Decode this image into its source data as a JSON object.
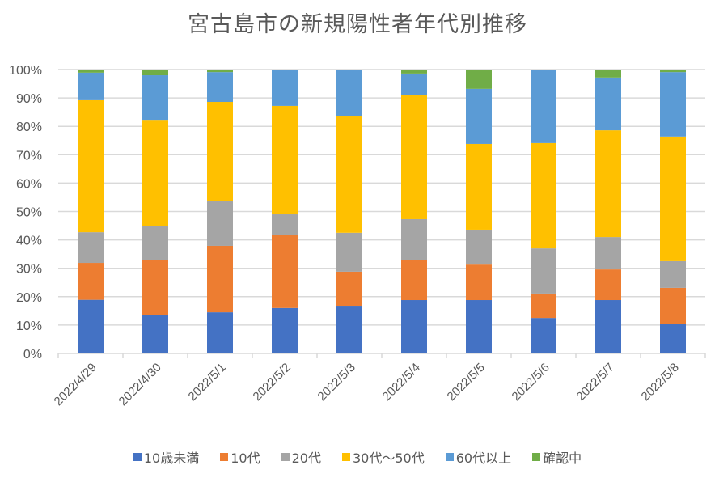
{
  "chart_data": {
    "type": "bar",
    "stacked": true,
    "normalized": "percent",
    "title": "宮古島市の新規陽性者年代別推移",
    "xlabel": "",
    "ylabel": "",
    "ylim": [
      0,
      100
    ],
    "yticks": [
      "0%",
      "10%",
      "20%",
      "30%",
      "40%",
      "50%",
      "60%",
      "70%",
      "80%",
      "90%",
      "100%"
    ],
    "grid": true,
    "legend_position": "bottom",
    "categories": [
      "2022/4/29",
      "2022/4/30",
      "2022/5/1",
      "2022/5/2",
      "2022/5/3",
      "2022/5/4",
      "2022/5/5",
      "2022/5/6",
      "2022/5/7",
      "2022/5/8"
    ],
    "series": [
      {
        "name": "10歳未満",
        "color": "#4472C4",
        "values": [
          18.9,
          13.4,
          14.5,
          16.0,
          16.8,
          18.8,
          18.8,
          12.5,
          18.8,
          10.5
        ]
      },
      {
        "name": "10代",
        "color": "#ED7D31",
        "values": [
          13.0,
          19.6,
          23.4,
          25.6,
          12.0,
          14.2,
          12.5,
          8.6,
          10.8,
          12.6
        ]
      },
      {
        "name": "20代",
        "color": "#A5A5A5",
        "values": [
          10.8,
          12.0,
          15.9,
          7.4,
          13.7,
          14.3,
          12.3,
          15.9,
          11.4,
          9.4
        ]
      },
      {
        "name": "30代～50代",
        "color": "#FFC000",
        "values": [
          46.5,
          37.3,
          34.8,
          38.2,
          41.0,
          43.6,
          30.2,
          37.1,
          37.6,
          43.9
        ]
      },
      {
        "name": "60代以上",
        "color": "#5B9BD5",
        "values": [
          9.7,
          15.7,
          10.5,
          12.8,
          16.5,
          7.7,
          19.4,
          25.9,
          18.6,
          22.7
        ]
      },
      {
        "name": "確認中",
        "color": "#70AD47",
        "values": [
          1.1,
          2.0,
          0.9,
          0.0,
          0.0,
          1.4,
          6.8,
          0.0,
          2.8,
          0.9
        ]
      }
    ]
  }
}
